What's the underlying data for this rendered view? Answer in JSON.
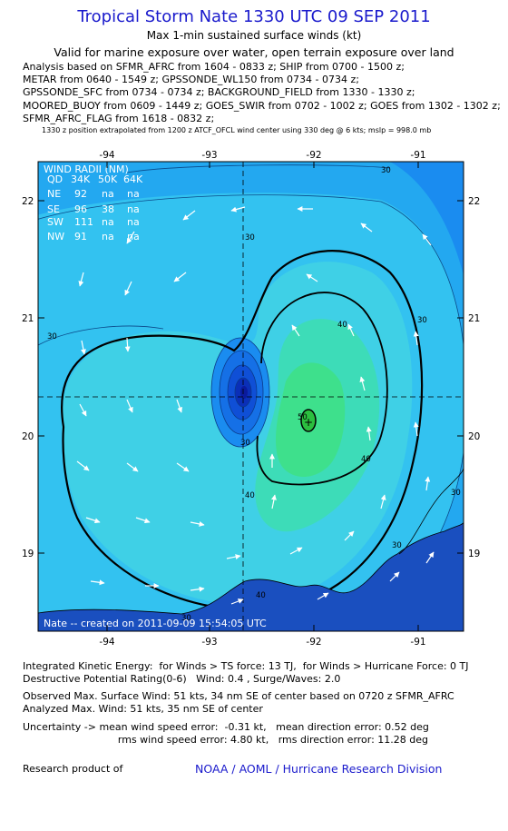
{
  "header": {
    "title": "Tropical Storm Nate 1330 UTC 09 SEP 2011",
    "subtitle1": "Max 1-min sustained surface winds (kt)",
    "subtitle2": "Valid for marine exposure over water, open terrain exposure over land"
  },
  "analysis_lines": [
    "Analysis based on SFMR_AFRC from 1604 - 0833 z; SHIP from 0700 - 1500 z;",
    "METAR from 0640 - 1549 z; GPSSONDE_WL150 from 0734 - 0734 z;",
    "GPSSONDE_SFC from 0734 - 0734 z; BACKGROUND_FIELD from 1330 - 1330 z;",
    "MOORED_BUOY from 0609 - 1449 z; GOES_SWIR from 0702 - 1002 z; GOES from 1302 - 1302 z;",
    "SFMR_AFRC_FLAG from 1618 - 0832 z;"
  ],
  "position_note": "1330 z position extrapolated from 1200 z ATCF_OFCL wind center using 330 deg @ 6 kts; mslp = 998.0 mb",
  "map": {
    "lon_ticks": [
      "-94",
      "-93",
      "-92",
      "-91"
    ],
    "lat_ticks": [
      "22",
      "21",
      "20",
      "19"
    ],
    "contour_labels": [
      "30",
      "30",
      "30",
      "30",
      "30",
      "30",
      "30",
      "30",
      "40",
      "40",
      "40",
      "40",
      "50"
    ],
    "center_marker": "+",
    "footer": "Nate -- created on 2011-09-09 15:54:05 UTC",
    "wind_radii": {
      "title": "WIND RADII (NM)",
      "header": [
        "QD",
        "34K",
        "50K",
        "64K"
      ],
      "rows": [
        [
          "NE",
          "92",
          "na",
          "na"
        ],
        [
          "SE",
          "96",
          "38",
          "na"
        ],
        [
          "SW",
          "111",
          "na",
          "na"
        ],
        [
          "NW",
          "91",
          "na",
          "na"
        ]
      ]
    },
    "colors": {
      "band_20": "#1a8cf0",
      "band_30": "#33c2f0",
      "band_40": "#3ddcb8",
      "band_50": "#3ee08c",
      "band_60": "#2bbf3f",
      "land": "#1a4fbf",
      "eye_dark": "#0a1a9c"
    }
  },
  "info": {
    "ike": "Integrated Kinetic Energy:  for Winds > TS force: 13 TJ,  for Winds > Hurricane Force: 0 TJ",
    "dpr": "Destructive Potential Rating(0-6)   Wind: 0.4 , Surge/Waves: 2.0",
    "observed": "Observed Max. Surface Wind: 51 kts, 34 nm SE of center based on 0720 z SFMR_AFRC",
    "analyzed": "Analyzed Max. Wind: 51 kts, 35 nm SE of center",
    "uncertainty1": "Uncertainty -> mean wind speed error:  -0.31 kt,   mean direction error: 0.52 deg",
    "uncertainty2": "                              rms wind speed error: 4.80 kt,   rms direction error: 11.28 deg",
    "research": "Research product of",
    "org": "NOAA / AOML / Hurricane Research Division"
  }
}
